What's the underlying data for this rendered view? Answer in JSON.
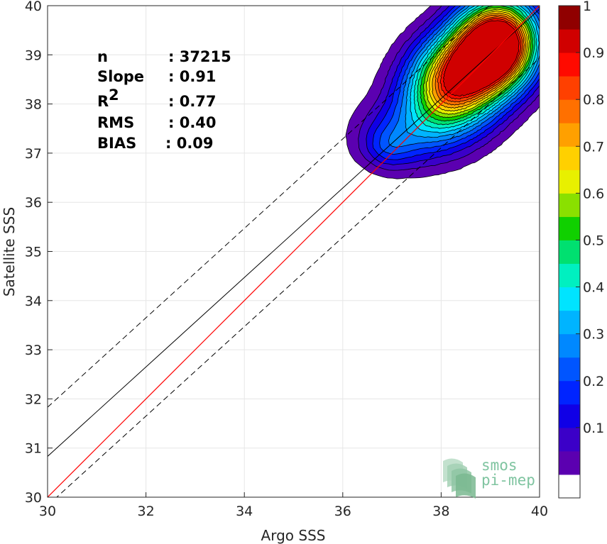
{
  "chart_data": {
    "type": "scatter",
    "subtype": "density-contour",
    "xlabel": "Argo SSS",
    "ylabel": "Satellite SSS",
    "xlim": [
      30,
      40
    ],
    "ylim": [
      30,
      40
    ],
    "xticks": [
      "30",
      "32",
      "34",
      "36",
      "38",
      "40"
    ],
    "yticks": [
      "30",
      "31",
      "32",
      "33",
      "34",
      "35",
      "36",
      "37",
      "38",
      "39",
      "40"
    ],
    "grid": true,
    "stats": [
      {
        "label": "n",
        "value": ": 37215"
      },
      {
        "label": "Slope",
        "value": ": 0.91"
      },
      {
        "label": "R",
        "sup": "2",
        "value": ": 0.77"
      },
      {
        "label": "RMS",
        "value": ": 0.40"
      },
      {
        "label": "BIAS",
        "value": ": 0.09"
      }
    ],
    "lines": {
      "identity": {
        "x": [
          30,
          40
        ],
        "y": [
          30,
          40
        ],
        "color": "#ff0000"
      },
      "regression": {
        "slope": 0.91,
        "intercept": 3.53,
        "color": "#000000"
      },
      "upper_bound": {
        "slope": 0.91,
        "intercept": 4.53,
        "dash": true
      },
      "lower_bound": {
        "slope": 0.91,
        "intercept": 2.53,
        "dash": true
      }
    },
    "density": {
      "lobes": [
        {
          "cx": 39.2,
          "cy": 39.3,
          "sx": 0.55,
          "sy": 0.6,
          "amp": 1.0
        },
        {
          "cx": 38.2,
          "cy": 38.3,
          "sx": 0.65,
          "sy": 0.6,
          "amp": 0.72
        },
        {
          "cx": 38.7,
          "cy": 38.9,
          "sx": 0.6,
          "sy": 0.55,
          "amp": 0.55
        },
        {
          "cx": 37.4,
          "cy": 37.4,
          "sx": 0.75,
          "sy": 0.5,
          "amp": 0.22
        },
        {
          "cx": 36.9,
          "cy": 37.1,
          "sx": 0.35,
          "sy": 0.3,
          "amp": 0.12
        }
      ],
      "levels": [
        0.05,
        0.1,
        0.15,
        0.2,
        0.25,
        0.3,
        0.35,
        0.4,
        0.45,
        0.5,
        0.55,
        0.6,
        0.65,
        0.7,
        0.75,
        0.8,
        0.85,
        0.9,
        0.95
      ]
    },
    "colorbar": {
      "ticks": [
        "0.1",
        "0.2",
        "0.3",
        "0.4",
        "0.5",
        "0.6",
        "0.7",
        "0.8",
        "0.9",
        "1"
      ],
      "colors": [
        "#ffffff",
        "#5b00b0",
        "#3b00c8",
        "#1000e6",
        "#0024ff",
        "#0055ff",
        "#0088ff",
        "#00b4ff",
        "#00e4ff",
        "#00f0c0",
        "#00e070",
        "#10d000",
        "#8ae000",
        "#e8f000",
        "#ffd000",
        "#ffa000",
        "#ff7000",
        "#ff4000",
        "#ff0a00",
        "#d00000",
        "#900000"
      ]
    },
    "logo": {
      "line1": "smos",
      "line2": "pi-mep"
    }
  }
}
